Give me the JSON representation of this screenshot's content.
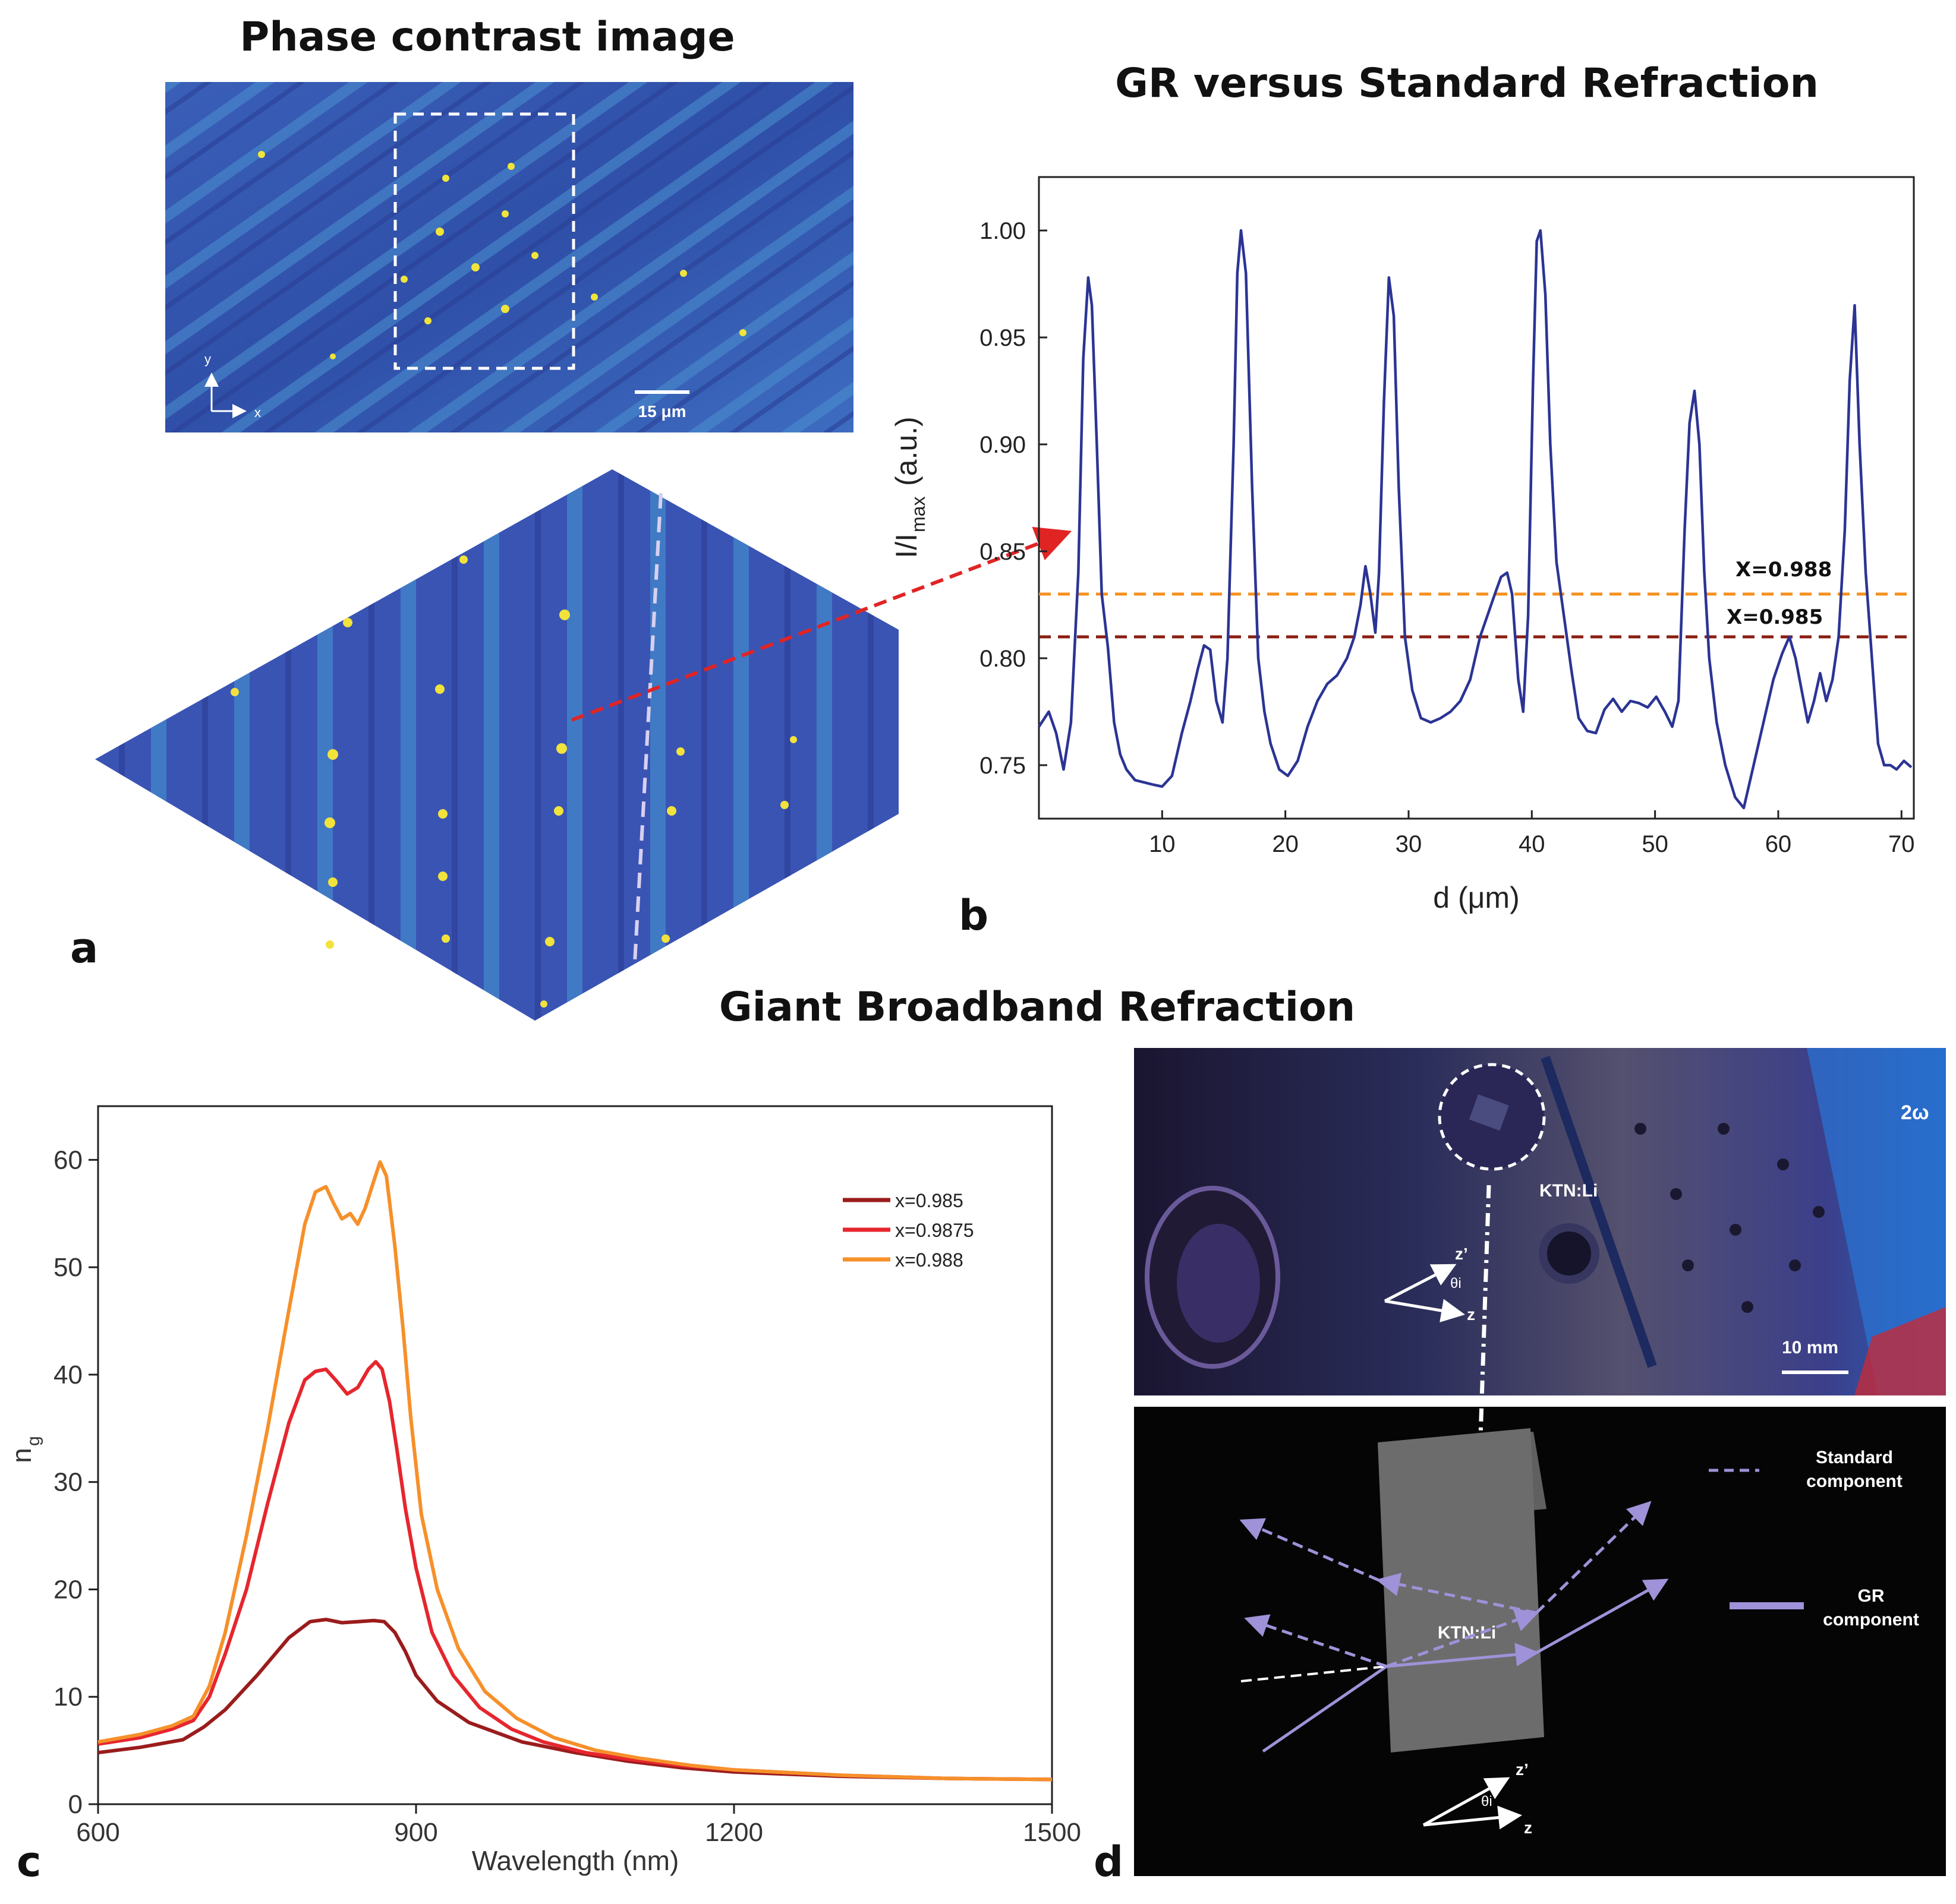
{
  "titles": {
    "panel_a": "Phase contrast image",
    "panel_b": "GR versus Standard Refraction",
    "middle": "Giant Broadband Refraction"
  },
  "panel_letters": {
    "a": "a",
    "b": "b",
    "c": "c",
    "d": "d"
  },
  "image_a": {
    "scale_bar": "15 μm",
    "axis_x": "x",
    "axis_y": "y"
  },
  "image_d": {
    "label_2w": "2ω",
    "crystal_label": "KTN:Li",
    "scale_bar": "10 mm",
    "axis_z": "z",
    "axis_zprime": "z’",
    "angle": "θi",
    "legend": [
      {
        "line1": "Standard",
        "line2": "component"
      },
      {
        "line1": "GR",
        "line2": "component"
      }
    ]
  },
  "chart_data": [
    {
      "id": "b",
      "type": "line",
      "title": "GR versus Standard Refraction",
      "xlabel": "d (μm)",
      "ylabel": "I/I",
      "ylabel_sub": "max",
      "ylabel_units": "(a.u.)",
      "xlim": [
        0,
        71
      ],
      "ylim": [
        0.725,
        1.025
      ],
      "xticks": [
        10,
        20,
        30,
        40,
        50,
        60,
        70
      ],
      "yticks": [
        0.75,
        0.8,
        0.85,
        0.9,
        0.95,
        1.0
      ],
      "ytick_labels": [
        "0.75",
        "0.80",
        "0.85",
        "0.90",
        "0.95",
        "1.00"
      ],
      "color": "#2b3494",
      "series": [
        {
          "name": "profile",
          "x": [
            0,
            0.8,
            1.4,
            2.0,
            2.6,
            3.2,
            3.6,
            4.0,
            4.3,
            4.7,
            5.1,
            5.6,
            6.1,
            6.6,
            7.1,
            7.8,
            8.5,
            9.2,
            10.0,
            10.8,
            11.6,
            12.3,
            12.9,
            13.4,
            13.9,
            14.4,
            14.9,
            15.3,
            15.8,
            16.1,
            16.4,
            16.8,
            17.3,
            17.8,
            18.3,
            18.8,
            19.5,
            20.2,
            21.0,
            21.8,
            22.6,
            23.4,
            24.2,
            25.0,
            25.6,
            26.1,
            26.5,
            26.9,
            27.3,
            27.6,
            28.0,
            28.4,
            28.8,
            29.2,
            29.7,
            30.3,
            31.0,
            31.8,
            32.6,
            33.4,
            34.2,
            35.0,
            35.8,
            36.4,
            37.0,
            37.5,
            38.0,
            38.4,
            38.9,
            39.3,
            39.7,
            40.1,
            40.4,
            40.7,
            41.1,
            41.5,
            42.0,
            42.6,
            43.2,
            43.8,
            44.5,
            45.2,
            45.9,
            46.6,
            47.3,
            48.0,
            48.7,
            49.4,
            50.1,
            50.8,
            51.4,
            51.9,
            52.4,
            52.8,
            53.2,
            53.6,
            54.0,
            54.4,
            55.0,
            55.7,
            56.5,
            57.2,
            58.0,
            58.8,
            59.6,
            60.3,
            60.9,
            61.4,
            61.9,
            62.4,
            62.9,
            63.4,
            63.9,
            64.4,
            64.9,
            65.4,
            65.8,
            66.2,
            66.6,
            67.1,
            67.6,
            68.1,
            68.6,
            69.1,
            69.6,
            70.2,
            70.8
          ],
          "y": [
            0.768,
            0.775,
            0.765,
            0.748,
            0.77,
            0.84,
            0.94,
            0.978,
            0.965,
            0.9,
            0.83,
            0.805,
            0.77,
            0.755,
            0.748,
            0.743,
            0.742,
            0.741,
            0.74,
            0.745,
            0.765,
            0.78,
            0.795,
            0.806,
            0.804,
            0.78,
            0.77,
            0.8,
            0.9,
            0.98,
            1.0,
            0.98,
            0.88,
            0.8,
            0.775,
            0.76,
            0.748,
            0.745,
            0.752,
            0.768,
            0.78,
            0.788,
            0.792,
            0.8,
            0.81,
            0.825,
            0.843,
            0.83,
            0.812,
            0.84,
            0.92,
            0.978,
            0.96,
            0.88,
            0.81,
            0.785,
            0.772,
            0.77,
            0.772,
            0.775,
            0.78,
            0.79,
            0.81,
            0.82,
            0.83,
            0.838,
            0.84,
            0.83,
            0.79,
            0.775,
            0.82,
            0.93,
            0.995,
            1.0,
            0.97,
            0.9,
            0.845,
            0.82,
            0.795,
            0.772,
            0.766,
            0.765,
            0.776,
            0.781,
            0.775,
            0.78,
            0.779,
            0.777,
            0.782,
            0.775,
            0.768,
            0.78,
            0.86,
            0.91,
            0.925,
            0.9,
            0.84,
            0.8,
            0.77,
            0.75,
            0.735,
            0.73,
            0.75,
            0.77,
            0.79,
            0.802,
            0.81,
            0.8,
            0.785,
            0.77,
            0.78,
            0.793,
            0.78,
            0.79,
            0.81,
            0.86,
            0.93,
            0.965,
            0.9,
            0.84,
            0.8,
            0.76,
            0.75,
            0.75,
            0.748,
            0.752,
            0.749
          ]
        }
      ],
      "reference_lines": [
        {
          "label": "X=0.988",
          "y": 0.83,
          "color": "#f5901e"
        },
        {
          "label": "X=0.985",
          "y": 0.81,
          "color": "#8b1e12"
        }
      ]
    },
    {
      "id": "c",
      "type": "line",
      "title": "",
      "xlabel": "Wavelength (nm)",
      "ylabel": "n",
      "ylabel_sub": "g",
      "xlim": [
        600,
        1500
      ],
      "ylim": [
        0,
        65
      ],
      "xticks": [
        600,
        900,
        1200,
        1500
      ],
      "yticks": [
        0,
        10,
        20,
        30,
        40,
        50,
        60
      ],
      "legend_position": "top-right",
      "series": [
        {
          "name": "x=0.985",
          "color": "#9b1c1c",
          "x": [
            600,
            640,
            680,
            700,
            720,
            750,
            780,
            800,
            815,
            830,
            845,
            860,
            870,
            880,
            890,
            900,
            920,
            950,
            1000,
            1050,
            1100,
            1150,
            1200,
            1300,
            1400,
            1500
          ],
          "y": [
            4.8,
            5.3,
            6.0,
            7.2,
            8.8,
            12.0,
            15.5,
            17.0,
            17.2,
            16.9,
            17.0,
            17.1,
            17.0,
            16.0,
            14.2,
            12.0,
            9.6,
            7.6,
            5.8,
            4.8,
            4.0,
            3.4,
            3.0,
            2.6,
            2.4,
            2.3
          ]
        },
        {
          "name": "x=0.9875",
          "color": "#e6262e",
          "x": [
            600,
            640,
            670,
            690,
            705,
            720,
            740,
            760,
            780,
            795,
            805,
            815,
            825,
            835,
            845,
            855,
            862,
            868,
            875,
            882,
            890,
            900,
            915,
            935,
            960,
            990,
            1020,
            1060,
            1100,
            1150,
            1200,
            1300,
            1400,
            1500
          ],
          "y": [
            5.6,
            6.2,
            7.0,
            7.8,
            10.0,
            14.0,
            20.0,
            28.0,
            35.5,
            39.5,
            40.3,
            40.5,
            39.4,
            38.2,
            38.8,
            40.5,
            41.2,
            40.5,
            37.5,
            33.0,
            27.5,
            22.0,
            16.0,
            12.0,
            9.0,
            7.0,
            5.8,
            4.8,
            4.2,
            3.6,
            3.2,
            2.7,
            2.4,
            2.3
          ]
        },
        {
          "name": "x=0.988",
          "color": "#f6902a",
          "x": [
            600,
            640,
            670,
            690,
            705,
            720,
            740,
            760,
            780,
            795,
            805,
            815,
            822,
            830,
            838,
            845,
            852,
            860,
            866,
            872,
            880,
            888,
            895,
            905,
            920,
            940,
            965,
            995,
            1030,
            1070,
            1110,
            1160,
            1200,
            1300,
            1400,
            1500
          ],
          "y": [
            5.8,
            6.5,
            7.3,
            8.2,
            11.0,
            16.0,
            25.0,
            35.0,
            46.0,
            54.0,
            57.0,
            57.5,
            56.0,
            54.5,
            55.0,
            54.0,
            55.5,
            58.0,
            59.8,
            58.5,
            52.0,
            44.0,
            36.0,
            27.0,
            20.0,
            14.5,
            10.5,
            8.0,
            6.2,
            5.0,
            4.3,
            3.6,
            3.2,
            2.7,
            2.4,
            2.3
          ]
        }
      ]
    }
  ]
}
